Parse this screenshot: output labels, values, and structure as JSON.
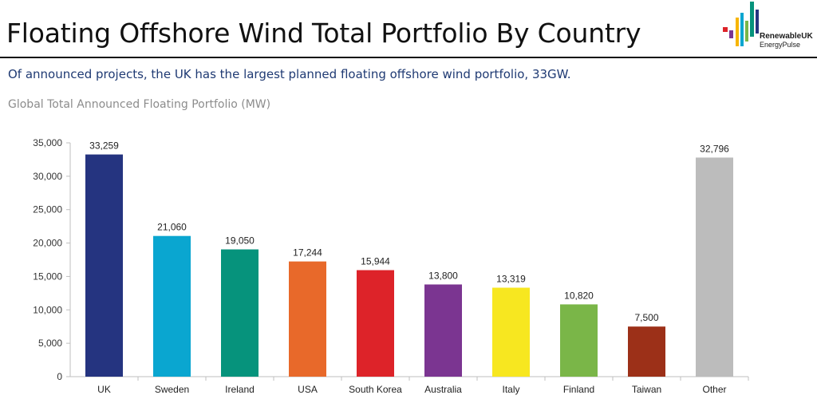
{
  "header": {
    "title": "Floating Offshore Wind Total Portfolio By Country",
    "subtitle": "Of announced projects, the UK has the largest planned floating offshore wind portfolio, 33GW.",
    "logo_line1": "RenewableUK",
    "logo_line2": "EnergyPulse"
  },
  "chart_data": {
    "type": "bar",
    "title": "Global Total Announced Floating Portfolio (MW)",
    "xlabel": "",
    "ylabel": "",
    "categories": [
      "UK",
      "Sweden",
      "Ireland",
      "USA",
      "South Korea",
      "Australia",
      "Italy",
      "Finland",
      "Taiwan",
      "Other"
    ],
    "values": [
      33259,
      21060,
      19050,
      17244,
      15944,
      13800,
      13319,
      10820,
      7500,
      32796
    ],
    "value_labels": [
      "33,259",
      "21,060",
      "19,050",
      "17,244",
      "15,944",
      "13,800",
      "13,319",
      "10,820",
      "7,500",
      "32,796"
    ],
    "colors": [
      "#253480",
      "#0aa6d0",
      "#06937c",
      "#e8692a",
      "#dd2329",
      "#7b3591",
      "#f7e720",
      "#7ab648",
      "#9c3018",
      "#bcbcbc"
    ],
    "ylim": [
      0,
      35000
    ],
    "yticks": [
      0,
      5000,
      10000,
      15000,
      20000,
      25000,
      30000,
      35000
    ],
    "ytick_labels": [
      "0",
      "5,000",
      "10,000",
      "15,000",
      "20,000",
      "25,000",
      "30,000",
      "35,000"
    ],
    "grid": false,
    "legend": "none"
  }
}
